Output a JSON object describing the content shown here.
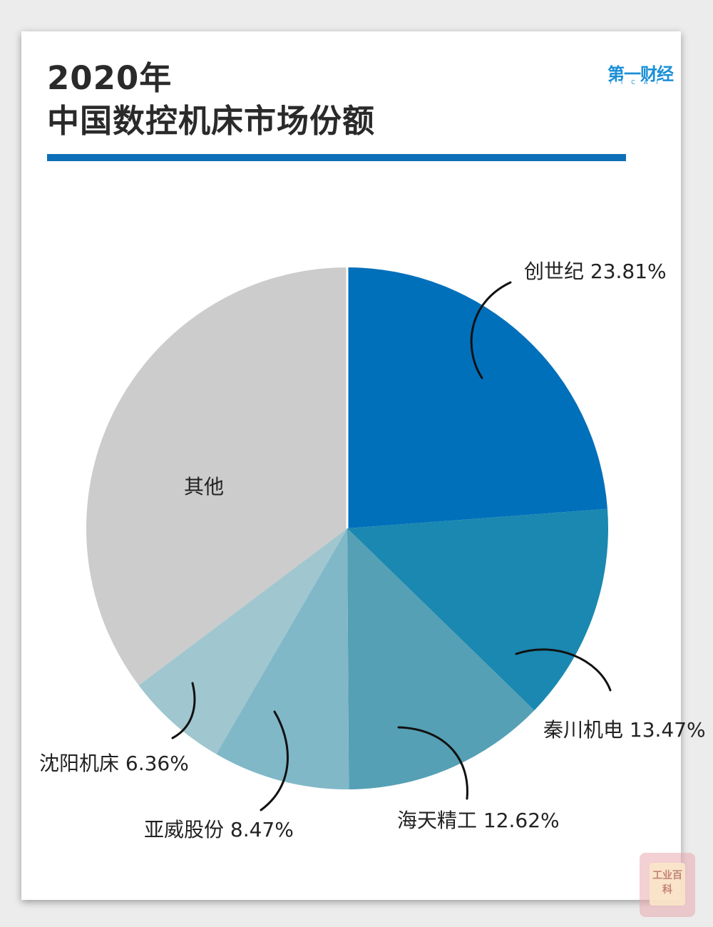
{
  "header": {
    "title_line1": "2020年",
    "title_line2": "中国数控机床市场份额",
    "accent_color": "#0d6fb8"
  },
  "logo": {
    "main": "第一财经",
    "sub": "YICAI",
    "color": "#1a8fd8"
  },
  "watermark": {
    "text": "工业百科"
  },
  "chart_data": {
    "type": "pie",
    "title": "2020年 中国数控机床市场份额",
    "start_angle_deg": 0,
    "direction": "clockwise",
    "slices": [
      {
        "label": "创世纪",
        "value": 23.81,
        "display": "创世纪 23.81%",
        "color": "#0070bb"
      },
      {
        "label": "秦川机电",
        "value": 13.47,
        "display": "秦川机电 13.47%",
        "color": "#1a88b0"
      },
      {
        "label": "海天精工",
        "value": 12.62,
        "display": "海天精工 12.62%",
        "color": "#55a0b5"
      },
      {
        "label": "亚威股份",
        "value": 8.47,
        "display": "亚威股份 8.47%",
        "color": "#80b8c8"
      },
      {
        "label": "沈阳机床",
        "value": 6.36,
        "display": "沈阳机床 6.36%",
        "color": "#a0c6cf"
      },
      {
        "label": "其他",
        "value": 35.27,
        "display": "其他",
        "color": "#cccccc"
      }
    ]
  }
}
